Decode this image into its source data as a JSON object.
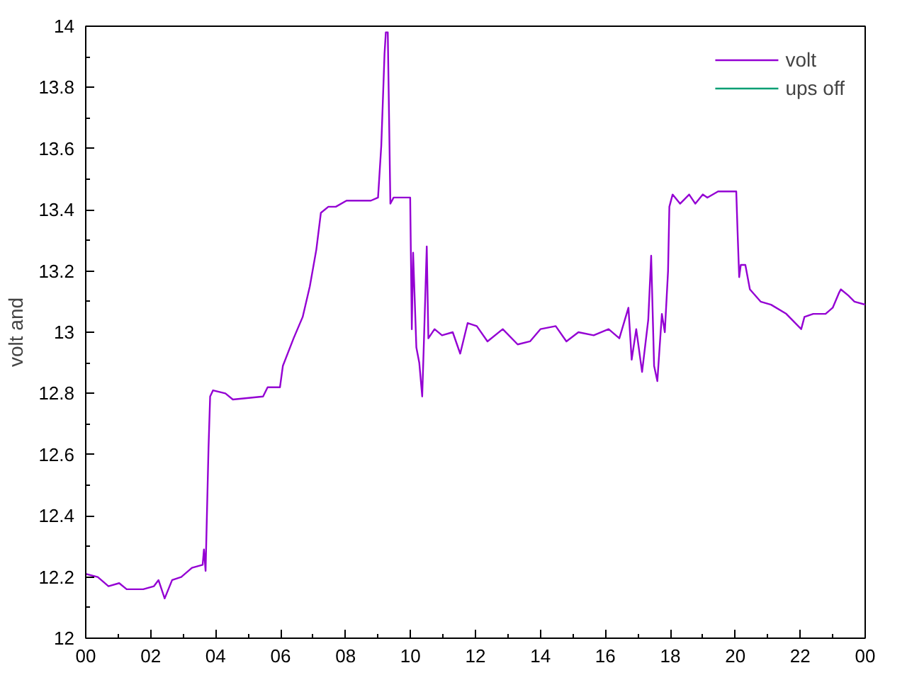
{
  "chart_data": {
    "type": "line",
    "ylabel": "volt and",
    "xlim": [
      0,
      24
    ],
    "ylim": [
      12,
      14
    ],
    "xticks": [
      {
        "value": 0,
        "label": "00"
      },
      {
        "value": 2,
        "label": "02"
      },
      {
        "value": 4,
        "label": "04"
      },
      {
        "value": 6,
        "label": "06"
      },
      {
        "value": 8,
        "label": "08"
      },
      10,
      12,
      14,
      16,
      18,
      20,
      22,
      {
        "value": 24,
        "label": "00"
      }
    ],
    "yticks": [
      12,
      12.2,
      12.4,
      12.6,
      12.8,
      13,
      13.2,
      13.4,
      13.6,
      13.8,
      14
    ],
    "grid": false,
    "legend": "top right",
    "series": [
      {
        "name": "volt",
        "color": "#9400d3",
        "x": [
          0,
          0.37,
          0.7,
          1.03,
          1.26,
          1.77,
          2.1,
          2.24,
          2.43,
          2.66,
          2.94,
          3.27,
          3.6,
          3.64,
          3.69,
          3.78,
          3.83,
          3.92,
          4.3,
          4.53,
          5.46,
          5.6,
          5.98,
          6.07,
          6.4,
          6.68,
          6.9,
          7.1,
          7.24,
          7.47,
          7.7,
          8.03,
          8.78,
          9.0,
          9.1,
          9.2,
          9.24,
          9.3,
          9.34,
          9.38,
          9.48,
          9.99,
          10.04,
          10.08,
          10.18,
          10.27,
          10.36,
          10.41,
          10.5,
          10.55,
          10.74,
          10.97,
          11.3,
          11.53,
          11.76,
          12.04,
          12.37,
          12.84,
          13.3,
          13.68,
          14.0,
          14.47,
          14.8,
          15.17,
          15.64,
          16.1,
          16.43,
          16.71,
          16.81,
          16.95,
          17.13,
          17.32,
          17.41,
          17.5,
          17.6,
          17.74,
          17.83,
          17.93,
          17.97,
          18.07,
          18.3,
          18.58,
          18.77,
          19.0,
          19.14,
          19.47,
          20.03,
          20.07,
          20.12,
          20.17,
          20.31,
          20.45,
          20.78,
          21.1,
          21.57,
          22.03,
          22.13,
          22.4,
          22.78,
          23.0,
          23.2,
          23.25,
          23.48,
          23.67,
          24.0
        ],
        "values": [
          12.21,
          12.2,
          12.17,
          12.18,
          12.16,
          12.16,
          12.17,
          12.19,
          12.13,
          12.19,
          12.2,
          12.23,
          12.24,
          12.29,
          12.22,
          12.62,
          12.79,
          12.81,
          12.8,
          12.78,
          12.79,
          12.82,
          12.82,
          12.89,
          12.98,
          13.05,
          13.15,
          13.27,
          13.39,
          13.41,
          13.41,
          13.43,
          13.43,
          13.44,
          13.61,
          13.91,
          13.98,
          13.98,
          13.7,
          13.42,
          13.44,
          13.44,
          13.01,
          13.26,
          12.95,
          12.9,
          12.79,
          12.96,
          13.28,
          12.98,
          13.01,
          12.99,
          13.0,
          12.93,
          13.03,
          13.02,
          12.97,
          13.01,
          12.96,
          12.97,
          13.01,
          13.02,
          12.97,
          13.0,
          12.99,
          13.01,
          12.98,
          13.08,
          12.91,
          13.01,
          12.87,
          13.04,
          13.25,
          12.89,
          12.84,
          13.06,
          13.0,
          13.2,
          13.41,
          13.45,
          13.42,
          13.45,
          13.42,
          13.45,
          13.44,
          13.46,
          13.46,
          13.33,
          13.18,
          13.22,
          13.22,
          13.14,
          13.1,
          13.09,
          13.06,
          13.01,
          13.05,
          13.06,
          13.06,
          13.08,
          13.13,
          13.14,
          13.12,
          13.1,
          13.09
        ]
      },
      {
        "name": "ups off",
        "color": "#009e73"
      }
    ]
  }
}
